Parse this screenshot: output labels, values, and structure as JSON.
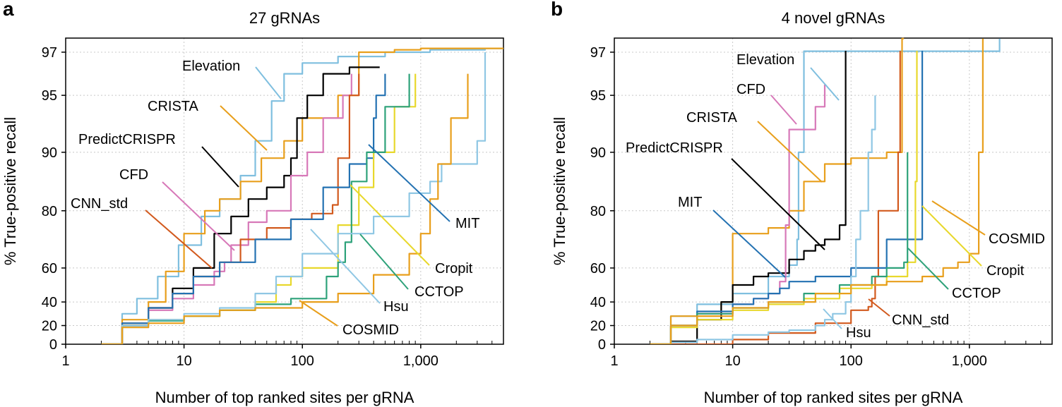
{
  "chart_data": [
    {
      "panel": "a",
      "type": "line",
      "title": "27 gRNAs",
      "xlabel": "Number of top ranked sites per gRNA",
      "ylabel": "% True-positive recall",
      "xscale": "log",
      "xlim": [
        1,
        5000
      ],
      "ylim": [
        0,
        100
      ],
      "yscale": "logit-like",
      "xticks": [
        {
          "v": 1,
          "label": "1"
        },
        {
          "v": 10,
          "label": "10"
        },
        {
          "v": 100,
          "label": "100"
        },
        {
          "v": 1000,
          "label": "1,000"
        }
      ],
      "yticks": [
        {
          "v": 0,
          "label": "0"
        },
        {
          "v": 20,
          "label": "20"
        },
        {
          "v": 40,
          "label": "40"
        },
        {
          "v": 60,
          "label": "60"
        },
        {
          "v": 80,
          "label": "80"
        },
        {
          "v": 90,
          "label": "90"
        },
        {
          "v": 95,
          "label": "95"
        },
        {
          "v": 97,
          "label": "97"
        }
      ],
      "grid": true,
      "series": [
        {
          "name": "Elevation",
          "color": "#7fbfdf",
          "x": [
            2,
            3,
            4,
            6,
            9,
            14,
            20,
            30,
            40,
            55,
            70,
            100,
            200,
            500,
            1200,
            3500,
            5000
          ],
          "y": [
            0,
            30,
            42,
            55,
            68,
            78,
            82,
            86,
            91,
            94.5,
            96,
            96.5,
            96.8,
            97,
            97.5,
            97.8,
            97.8
          ]
        },
        {
          "name": "CRISTA",
          "color": "#e89f1c",
          "x": [
            2,
            3,
            5,
            7,
            10,
            15,
            20,
            30,
            45,
            70,
            100,
            200,
            300,
            600,
            1000,
            3000,
            5000
          ],
          "y": [
            0,
            25,
            40,
            58,
            72,
            80,
            82,
            85,
            89,
            91,
            93,
            95,
            97,
            97.5,
            97.8,
            97.8,
            97.8
          ]
        },
        {
          "name": "PredictCRISPR",
          "color": "#000000",
          "x": [
            2,
            3,
            5,
            8,
            12,
            18,
            25,
            35,
            50,
            70,
            80,
            90,
            110,
            150,
            250,
            450
          ],
          "y": [
            0,
            20,
            35,
            48,
            60,
            72,
            78,
            82,
            84,
            86,
            89,
            93,
            95,
            96,
            96.3,
            96.3
          ]
        },
        {
          "name": "CFD",
          "color": "#d778b8",
          "x": [
            2,
            3,
            5,
            8,
            12,
            18,
            22,
            25,
            35,
            50,
            80,
            110,
            150,
            220,
            260
          ],
          "y": [
            0,
            20,
            33,
            42,
            50,
            58,
            62,
            68,
            76,
            80,
            86,
            90,
            93,
            95,
            96
          ]
        },
        {
          "name": "CNN_std",
          "color": "#d25a1e",
          "x": [
            2,
            3,
            5,
            8,
            12,
            20,
            30,
            50,
            80,
            120,
            180,
            200,
            250,
            300
          ],
          "y": [
            0,
            22,
            35,
            45,
            55,
            62,
            70,
            74,
            77,
            79,
            81,
            89,
            95,
            96
          ]
        },
        {
          "name": "MIT",
          "color": "#2472b2",
          "x": [
            2,
            3,
            5,
            8,
            12,
            20,
            40,
            80,
            150,
            250,
            350,
            400,
            420,
            500
          ],
          "y": [
            0,
            22,
            35,
            45,
            55,
            62,
            70,
            77,
            84,
            88,
            89,
            93,
            95,
            96
          ]
        },
        {
          "name": "Cropit",
          "color": "#e8d82c",
          "x": [
            2,
            3,
            5,
            10,
            20,
            40,
            60,
            80,
            100,
            200,
            300,
            400,
            600,
            900
          ],
          "y": [
            0,
            20,
            25,
            28,
            33,
            40,
            50,
            55,
            60,
            75,
            84,
            90,
            94,
            96
          ]
        },
        {
          "name": "CCTOP",
          "color": "#2ea27a",
          "x": [
            2,
            3,
            5,
            10,
            20,
            40,
            80,
            160,
            200,
            230,
            260,
            350,
            500,
            800
          ],
          "y": [
            0,
            20,
            24,
            28,
            33,
            38,
            42,
            55,
            62,
            69,
            85,
            90,
            94,
            96
          ]
        },
        {
          "name": "Hsu",
          "color": "#8fc7e4",
          "x": [
            2,
            3,
            5,
            10,
            20,
            40,
            60,
            100,
            200,
            400,
            800,
            1200,
            1500,
            3000,
            3500
          ],
          "y": [
            0,
            20,
            25,
            30,
            35,
            45,
            55,
            65,
            72,
            78,
            83,
            85,
            88,
            91,
            97
          ]
        },
        {
          "name": "COSMID",
          "color": "#e89f1c",
          "x": [
            2,
            3,
            5,
            10,
            20,
            40,
            100,
            200,
            400,
            800,
            1000,
            1200,
            1400,
            1800,
            2500
          ],
          "y": [
            0,
            18,
            22,
            28,
            33,
            35,
            40,
            45,
            56,
            65,
            72,
            82,
            88,
            93,
            96
          ]
        }
      ],
      "annotations": [
        {
          "text": "Elevation",
          "series": "Elevation"
        },
        {
          "text": "CRISTA",
          "series": "CRISTA"
        },
        {
          "text": "PredictCRISPR",
          "series": "PredictCRISPR"
        },
        {
          "text": "CFD",
          "series": "CFD"
        },
        {
          "text": "CNN_std",
          "series": "CNN_std"
        },
        {
          "text": "MIT",
          "series": "MIT"
        },
        {
          "text": "Cropit",
          "series": "Cropit"
        },
        {
          "text": "CCTOP",
          "series": "CCTOP"
        },
        {
          "text": "Hsu",
          "series": "Hsu"
        },
        {
          "text": "COSMID",
          "series": "COSMID"
        }
      ]
    },
    {
      "panel": "b",
      "type": "line",
      "title": "4 novel gRNAs",
      "xlabel": "Number of top ranked sites per gRNA",
      "ylabel": "% True-positive recall",
      "xscale": "log",
      "xlim": [
        1,
        5000
      ],
      "ylim": [
        0,
        100
      ],
      "yscale": "logit-like",
      "xticks": [
        {
          "v": 1,
          "label": "1"
        },
        {
          "v": 10,
          "label": "10"
        },
        {
          "v": 100,
          "label": "100"
        },
        {
          "v": 1000,
          "label": "1,000"
        }
      ],
      "yticks": [
        {
          "v": 0,
          "label": "0"
        },
        {
          "v": 20,
          "label": "20"
        },
        {
          "v": 40,
          "label": "40"
        },
        {
          "v": 60,
          "label": "60"
        },
        {
          "v": 80,
          "label": "80"
        },
        {
          "v": 90,
          "label": "90"
        },
        {
          "v": 95,
          "label": "95"
        },
        {
          "v": 97,
          "label": "97"
        }
      ],
      "grid": true,
      "series": [
        {
          "name": "Elevation",
          "color": "#7fbfdf",
          "x": [
            2,
            3,
            5,
            10,
            20,
            30,
            35,
            36,
            40,
            70,
            100,
            300,
            1000,
            1800,
            1800
          ],
          "y": [
            0,
            28,
            38,
            45,
            55,
            61,
            70,
            90,
            97.2,
            97.2,
            97.2,
            97.2,
            97.2,
            97.2,
            99.9
          ]
        },
        {
          "name": "CRISTA",
          "color": "#e89f1c",
          "x": [
            2,
            3,
            8,
            10,
            12,
            20,
            30,
            40,
            60,
            100,
            200,
            270,
            280
          ],
          "y": [
            0,
            28,
            40,
            72,
            72,
            74,
            80,
            85,
            88,
            89,
            90,
            99.9,
            99.9
          ]
        },
        {
          "name": "PredictCRISPR",
          "color": "#000000",
          "x": [
            2,
            3,
            5,
            8,
            10,
            15,
            20,
            30,
            40,
            50,
            60,
            80,
            90
          ],
          "y": [
            0,
            3,
            25,
            40,
            50,
            55,
            57,
            63,
            66,
            68,
            70,
            75,
            97.3
          ]
        },
        {
          "name": "CFD",
          "color": "#d778b8",
          "x": [
            2,
            3,
            5,
            10,
            15,
            20,
            25,
            28,
            30,
            50,
            60
          ],
          "y": [
            0,
            20,
            30,
            38,
            42,
            45,
            52,
            75,
            92,
            94,
            95.5
          ]
        },
        {
          "name": "CNN_std",
          "color": "#d25a1e",
          "x": [
            2,
            5,
            8,
            10,
            20,
            50,
            100,
            140,
            150,
            160,
            170,
            250,
            260
          ],
          "y": [
            0,
            0,
            0,
            5,
            12,
            22,
            33,
            36,
            42,
            55,
            80,
            90,
            97.3
          ]
        },
        {
          "name": "MIT",
          "color": "#2472b2",
          "x": [
            2,
            3,
            5,
            10,
            15,
            20,
            25,
            30,
            50,
            100,
            200,
            400,
            400
          ],
          "y": [
            0,
            20,
            32,
            38,
            42,
            45,
            48,
            52,
            55,
            60,
            70,
            70,
            97.3
          ]
        },
        {
          "name": "Cropit",
          "color": "#e8d82c",
          "x": [
            2,
            3,
            5,
            10,
            20,
            40,
            80,
            150,
            200,
            300,
            350,
            360
          ],
          "y": [
            0,
            18,
            25,
            33,
            38,
            42,
            48,
            50,
            55,
            62,
            85,
            97.3
          ]
        },
        {
          "name": "CCTOP",
          "color": "#2ea27a",
          "x": [
            2,
            3,
            5,
            10,
            20,
            40,
            80,
            150,
            200,
            280,
            300
          ],
          "y": [
            0,
            20,
            30,
            35,
            40,
            45,
            50,
            55,
            60,
            62,
            90
          ]
        },
        {
          "name": "Hsu",
          "color": "#8fc7e4",
          "x": [
            2,
            3,
            5,
            10,
            20,
            30,
            50,
            60,
            70,
            90,
            100,
            110,
            120,
            140,
            150,
            160
          ],
          "y": [
            0,
            2,
            5,
            10,
            13,
            15,
            20,
            25,
            30,
            40,
            55,
            70,
            80,
            90,
            92,
            95
          ]
        },
        {
          "name": "COSMID",
          "color": "#e89f1c",
          "x": [
            2,
            3,
            5,
            10,
            20,
            50,
            100,
            200,
            400,
            600,
            800,
            1000,
            1200,
            1300
          ],
          "y": [
            0,
            20,
            28,
            35,
            40,
            45,
            50,
            52,
            55,
            60,
            62,
            65,
            90,
            99.9
          ]
        }
      ],
      "annotations": [
        {
          "text": "Elevation",
          "series": "Elevation"
        },
        {
          "text": "CFD",
          "series": "CFD"
        },
        {
          "text": "CRISTA",
          "series": "CRISTA"
        },
        {
          "text": "PredictCRISPR",
          "series": "PredictCRISPR"
        },
        {
          "text": "MIT",
          "series": "MIT"
        },
        {
          "text": "COSMID",
          "series": "COSMID"
        },
        {
          "text": "Cropit",
          "series": "Cropit"
        },
        {
          "text": "CCTOP",
          "series": "CCTOP"
        },
        {
          "text": "CNN_std",
          "series": "CNN_std"
        },
        {
          "text": "Hsu",
          "series": "Hsu"
        }
      ]
    }
  ]
}
